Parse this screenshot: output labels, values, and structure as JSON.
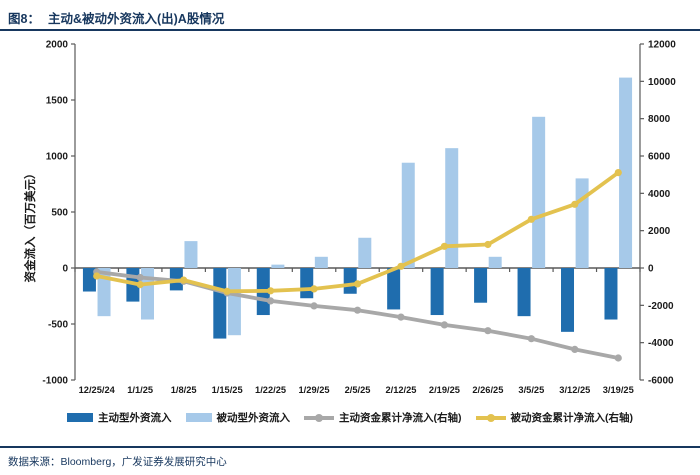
{
  "figure": {
    "title_prefix": "图8：",
    "title": "主动&被动外资流入(出)A股情况",
    "source_note": "数据来源：Bloomberg，广发证券发展研究中心",
    "accent_color": "#17375E"
  },
  "chart_data": {
    "type": "bar+line",
    "title": "主动&被动外资流入(出)A股情况",
    "categories": [
      "12/25/24",
      "1/1/25",
      "1/8/25",
      "1/15/25",
      "1/22/25",
      "1/29/25",
      "2/5/25",
      "2/12/25",
      "2/19/25",
      "2/26/25",
      "3/5/25",
      "3/12/25",
      "3/19/25"
    ],
    "left_axis": {
      "label": "资金流入（百万美元）",
      "min": -1000,
      "max": 2000,
      "ticks": [
        2000,
        1500,
        1000,
        500,
        0,
        -500,
        -1000
      ]
    },
    "right_axis": {
      "label": "",
      "min": -6000,
      "max": 12000,
      "ticks": [
        12000,
        10000,
        8000,
        6000,
        4000,
        2000,
        0,
        -2000,
        -4000,
        -6000
      ]
    },
    "grid": false,
    "legend_position": "bottom",
    "series": [
      {
        "name": "主动型外资流入",
        "type": "bar",
        "axis": "left",
        "color": "#1F6DAE",
        "values": [
          -210,
          -300,
          -200,
          -630,
          -420,
          -270,
          -230,
          -370,
          -420,
          -310,
          -430,
          -570,
          -460
        ]
      },
      {
        "name": "被动型外资流入",
        "type": "bar",
        "axis": "left",
        "color": "#A6C9E9",
        "values": [
          -430,
          -460,
          240,
          -600,
          30,
          100,
          270,
          940,
          1070,
          100,
          1350,
          800,
          1700
        ]
      },
      {
        "name": "主动资金累计净流入(右轴)",
        "type": "line",
        "axis": "right",
        "color": "#A8A8A8",
        "values": [
          -210,
          -510,
          -710,
          -1340,
          -1760,
          -2030,
          -2260,
          -2630,
          -3050,
          -3360,
          -3790,
          -4360,
          -4820
        ]
      },
      {
        "name": "被动资金累计净流入(右轴)",
        "type": "line",
        "axis": "right",
        "color": "#E3C24F",
        "values": [
          -430,
          -890,
          -650,
          -1250,
          -1220,
          -1120,
          -850,
          90,
          1160,
          1260,
          2610,
          3410,
          5110
        ]
      }
    ],
    "axis_color": "#595959",
    "tick_label_color": "#1a1a1a"
  }
}
